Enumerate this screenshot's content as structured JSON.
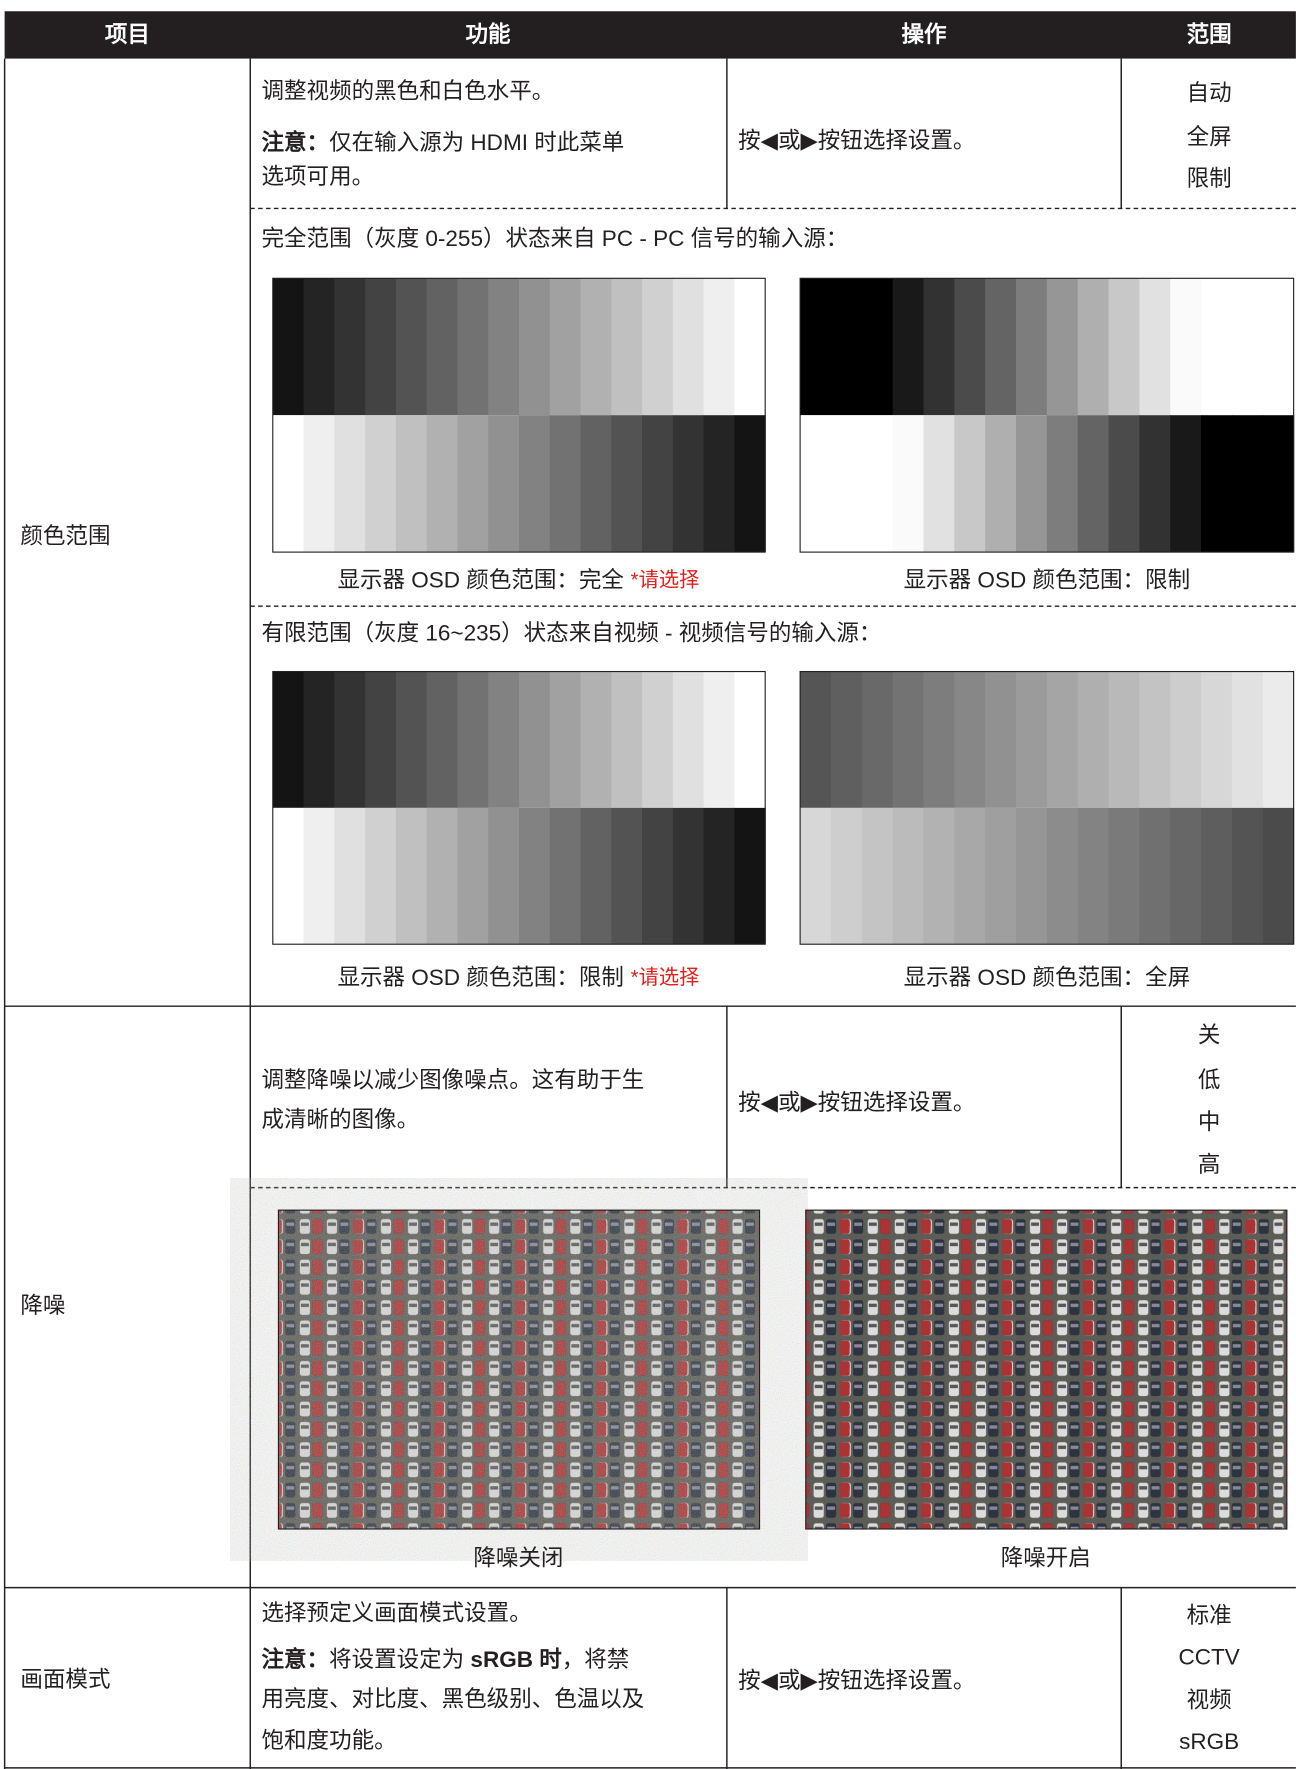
{
  "header": [
    "项目",
    "功能",
    "操作",
    "范围"
  ],
  "color_range": {
    "item": "颜色范围",
    "function": "调整视频的黑色和白色水平。",
    "note_label": "注意：",
    "note_lines": [
      "仅在输入源为 HDMI 时此菜单",
      "选项可用。"
    ],
    "operation": "按◀或▶按钮选择设置。",
    "range": [
      "自动",
      "全屏",
      "限制"
    ],
    "full_caption": "完全范围（灰度 0-255）状态来自 PC - PC 信号的输入源：",
    "full_images": [
      {
        "caption": "显示器 OSD 颜色范围：完全",
        "hint": "*请选择"
      },
      {
        "caption": "显示器 OSD 颜色范围：限制"
      }
    ],
    "limited_caption": "有限范围（灰度 16~235）状态来自视频 - 视频信号的输入源：",
    "limited_images": [
      {
        "caption": "显示器 OSD 颜色范围：限制",
        "hint": "*请选择"
      },
      {
        "caption": "显示器 OSD 颜色范围：全屏"
      }
    ]
  },
  "noise": {
    "item": "降噪",
    "function_lines": [
      "调整降噪以减少图像噪点。这有助于生",
      "成清晰的图像。"
    ],
    "operation": "按◀或▶按钮选择设置。",
    "range": [
      "关",
      "低",
      "中",
      "高"
    ],
    "images": [
      "降噪关闭",
      "降噪开启"
    ]
  },
  "picture_mode": {
    "item": "画面模式",
    "function": "选择预定义画面模式设置。",
    "note_lines": [
      [
        {
          "text": "注意：",
          "bold": true
        },
        {
          "text": "将设置设定为 ",
          "bold": false
        },
        {
          "text": "sRGB 时",
          "bold": true
        },
        {
          "text": "，将禁",
          "bold": false
        }
      ],
      [
        {
          "text": "用亮度、对比度、黑色级别、色温以及",
          "bold": false
        }
      ],
      [
        {
          "text": "饱和度功能。",
          "bold": false
        }
      ]
    ],
    "operation": "按◀或▶按钮选择设置。",
    "range": [
      "标准",
      "CCTV",
      "视频",
      "sRGB"
    ]
  }
}
